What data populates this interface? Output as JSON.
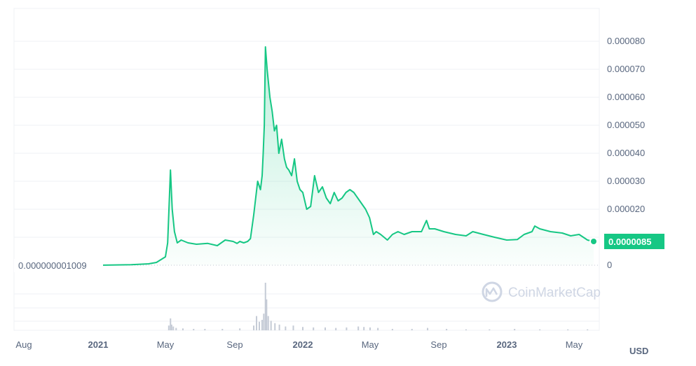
{
  "currency_label": "USD",
  "watermark": "CoinMarketCap",
  "colors": {
    "line": "#16c784",
    "volume": "#c5cbd6",
    "badge": "#16c784",
    "grid": "#eff2f5",
    "text": "#58667e"
  },
  "chart_data": {
    "type": "area",
    "title": "",
    "xlabel": "",
    "ylabel": "",
    "grid": true,
    "legend": "none",
    "x_ticks": [
      "Aug",
      "2021",
      "May",
      "Sep",
      "2022",
      "May",
      "Sep",
      "2023",
      "May"
    ],
    "x_tick_dates": [
      "2020-08",
      "2021-01",
      "2021-05",
      "2021-09",
      "2022-01",
      "2022-05",
      "2022-09",
      "2023-01",
      "2023-05"
    ],
    "y_ticks": [
      "0",
      "0.000020",
      "0.000030",
      "0.000040",
      "0.000050",
      "0.000060",
      "0.000070",
      "0.000080"
    ],
    "y_tick_values": [
      0,
      2e-05,
      3e-05,
      4e-05,
      5e-05,
      6e-05,
      7e-05,
      8e-05
    ],
    "ylim": [
      0,
      9e-05
    ],
    "start_label": "0.000000001009",
    "current_label": "0.0000085",
    "current_value": 8.5e-06,
    "series": [
      {
        "dates": [
          "2021-01-01",
          "2021-03-01",
          "2021-04-01",
          "2021-04-15",
          "2021-05-01",
          "2021-05-05",
          "2021-05-10",
          "2021-05-13",
          "2021-05-17",
          "2021-05-22",
          "2021-05-29",
          "2021-06-10",
          "2021-06-25",
          "2021-07-15",
          "2021-08-01",
          "2021-08-15",
          "2021-08-29",
          "2021-09-05",
          "2021-09-10",
          "2021-09-17",
          "2021-09-24",
          "2021-09-29",
          "2021-10-05",
          "2021-10-12",
          "2021-10-17",
          "2021-10-20",
          "2021-10-22",
          "2021-10-24",
          "2021-10-26",
          "2021-10-29",
          "2021-11-03",
          "2021-11-07",
          "2021-11-11",
          "2021-11-15",
          "2021-11-19",
          "2021-11-24",
          "2021-11-29",
          "2021-12-03",
          "2021-12-07",
          "2021-12-12",
          "2021-12-17",
          "2021-12-22",
          "2021-12-27",
          "2022-01-01",
          "2022-01-08",
          "2022-01-15",
          "2022-01-22",
          "2022-01-29",
          "2022-02-05",
          "2022-02-12",
          "2022-02-19",
          "2022-02-26",
          "2022-03-05",
          "2022-03-12",
          "2022-03-19",
          "2022-03-26",
          "2022-04-02",
          "2022-04-09",
          "2022-04-16",
          "2022-04-23",
          "2022-04-30",
          "2022-05-07",
          "2022-05-12",
          "2022-05-20",
          "2022-06-01",
          "2022-06-10",
          "2022-06-20",
          "2022-07-01",
          "2022-07-15",
          "2022-08-01",
          "2022-08-10",
          "2022-08-15",
          "2022-08-25",
          "2022-09-10",
          "2022-10-01",
          "2022-10-20",
          "2022-11-01",
          "2022-11-20",
          "2022-12-10",
          "2023-01-01",
          "2023-01-20",
          "2023-02-01",
          "2023-02-15",
          "2023-02-20",
          "2023-03-01",
          "2023-03-20",
          "2023-04-10",
          "2023-04-25",
          "2023-05-10",
          "2023-05-25",
          "2023-06-05"
        ],
        "values": [
          1e-09,
          2e-07,
          5e-07,
          1e-06,
          3e-06,
          8e-06,
          3.4e-05,
          2e-05,
          1.2e-05,
          8e-06,
          9e-06,
          8e-06,
          7.5e-06,
          7.8e-06,
          7e-06,
          9e-06,
          8.5e-06,
          7.8e-06,
          8.5e-06,
          8e-06,
          8.5e-06,
          9.5e-06,
          1.8e-05,
          3e-05,
          2.7e-05,
          3.2e-05,
          4e-05,
          5e-05,
          7.8e-05,
          7e-05,
          6e-05,
          5.5e-05,
          4.8e-05,
          5e-05,
          4e-05,
          4.5e-05,
          3.8e-05,
          3.5e-05,
          3.4e-05,
          3.2e-05,
          3.8e-05,
          3e-05,
          2.7e-05,
          2.6e-05,
          2e-05,
          2.1e-05,
          3.2e-05,
          2.6e-05,
          2.8e-05,
          2.4e-05,
          2.2e-05,
          2.6e-05,
          2.3e-05,
          2.4e-05,
          2.6e-05,
          2.7e-05,
          2.6e-05,
          2.4e-05,
          2.2e-05,
          2e-05,
          1.7e-05,
          1.1e-05,
          1.2e-05,
          1.1e-05,
          9e-06,
          1.1e-05,
          1.2e-05,
          1.1e-05,
          1.2e-05,
          1.2e-05,
          1.6e-05,
          1.3e-05,
          1.3e-05,
          1.2e-05,
          1.1e-05,
          1.05e-05,
          1.2e-05,
          1.1e-05,
          1e-05,
          9e-06,
          9.2e-06,
          1.1e-05,
          1.2e-05,
          1.4e-05,
          1.3e-05,
          1.2e-05,
          1.15e-05,
          1.05e-05,
          1.1e-05,
          9e-06,
          8.5e-06
        ]
      }
    ],
    "volume": {
      "dates": [
        "2021-05-07",
        "2021-05-10",
        "2021-05-12",
        "2021-05-15",
        "2021-05-20",
        "2021-06-01",
        "2021-06-20",
        "2021-07-10",
        "2021-08-10",
        "2021-09-10",
        "2021-10-05",
        "2021-10-10",
        "2021-10-15",
        "2021-10-20",
        "2021-10-23",
        "2021-10-26",
        "2021-10-28",
        "2021-10-31",
        "2021-11-05",
        "2021-11-12",
        "2021-11-20",
        "2021-12-01",
        "2021-12-15",
        "2022-01-01",
        "2022-01-20",
        "2022-02-10",
        "2022-03-01",
        "2022-03-20",
        "2022-04-10",
        "2022-04-20",
        "2022-05-01",
        "2022-05-15",
        "2022-06-10",
        "2022-07-15",
        "2022-08-12",
        "2022-09-15",
        "2022-10-20",
        "2022-12-01",
        "2023-01-15",
        "2023-03-01",
        "2023-04-20",
        "2023-05-25"
      ],
      "values": [
        0.1,
        0.25,
        0.12,
        0.08,
        0.05,
        0.04,
        0.03,
        0.03,
        0.03,
        0.04,
        0.1,
        0.3,
        0.18,
        0.22,
        0.35,
        1.0,
        0.65,
        0.3,
        0.2,
        0.15,
        0.12,
        0.08,
        0.1,
        0.07,
        0.06,
        0.06,
        0.05,
        0.06,
        0.08,
        0.07,
        0.06,
        0.05,
        0.03,
        0.03,
        0.05,
        0.03,
        0.02,
        0.02,
        0.03,
        0.02,
        0.02,
        0.02
      ]
    }
  }
}
